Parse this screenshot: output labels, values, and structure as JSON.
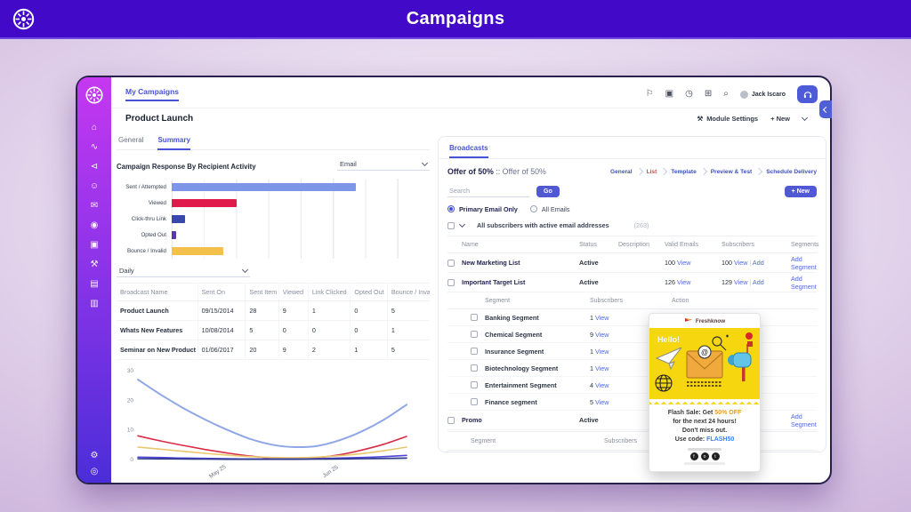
{
  "banner": {
    "title": "Campaigns"
  },
  "header": {
    "tab": "My Campaigns",
    "page_title": "Product Launch",
    "user_name": "Jack Iscaro",
    "module_settings": "Module Settings",
    "new_button": "+ New",
    "icons": {
      "wrench": "⚒"
    },
    "toolbar_icons": [
      {
        "name": "flag",
        "glyph": "⚐"
      },
      {
        "name": "archive",
        "glyph": "▣"
      },
      {
        "name": "history",
        "glyph": "◷"
      },
      {
        "name": "apps",
        "glyph": "⊞"
      },
      {
        "name": "search",
        "glyph": "⌕"
      }
    ]
  },
  "sidebar": {
    "items": [
      {
        "name": "home",
        "glyph": "⌂"
      },
      {
        "name": "activity",
        "glyph": "∿"
      },
      {
        "name": "campaigns",
        "glyph": "⊲"
      },
      {
        "name": "contacts",
        "glyph": "☺"
      },
      {
        "name": "mail",
        "glyph": "✉"
      },
      {
        "name": "insights",
        "glyph": "◉"
      },
      {
        "name": "media",
        "glyph": "▣"
      },
      {
        "name": "tools",
        "glyph": "⚒"
      },
      {
        "name": "reports",
        "glyph": "▤"
      },
      {
        "name": "archive",
        "glyph": "▥"
      }
    ],
    "bottom": [
      {
        "name": "settings",
        "glyph": "⚙"
      },
      {
        "name": "help",
        "glyph": "◎"
      }
    ]
  },
  "left_panel": {
    "tabs": {
      "general": "General",
      "summary": "Summary"
    },
    "chart_heading": "Campaign Response By Recipient Activity",
    "email_filter": "Email",
    "frequency_filter": "Daily",
    "broadcast_table": {
      "headers": [
        "Broadcast Name",
        "Sent On",
        "Sent Item",
        "Viewed",
        "Link Clicked",
        "Opted Out",
        "Bounce / Invalid"
      ],
      "rows": [
        [
          "Product Launch",
          "09/15/2014",
          "28",
          "9",
          "1",
          "0",
          "5"
        ],
        [
          "Whats New Features",
          "10/08/2014",
          "5",
          "0",
          "0",
          "0",
          "1"
        ],
        [
          "Seminar on New Product",
          "01/06/2017",
          "20",
          "9",
          "2",
          "1",
          "5"
        ]
      ]
    }
  },
  "right_panel": {
    "tab": "Broadcasts",
    "title_primary": "Offer of 50%",
    "title_separator": " :: ",
    "title_secondary": "Offer of 50%",
    "steps": [
      {
        "label": "General",
        "active": false
      },
      {
        "label": "List",
        "active": true
      },
      {
        "label": "Template",
        "active": false
      },
      {
        "label": "Preview & Test",
        "active": false
      },
      {
        "label": "Schedule Delivery",
        "active": false
      }
    ],
    "search_placeholder": "Search",
    "go_button": "Go",
    "new_button": "+ New",
    "radios": {
      "primary": "Primary Email Only",
      "all": "All Emails"
    },
    "filter_checkbox": "All subscribers with active email addresses",
    "filter_count": "(263)",
    "lists_table": {
      "headers": [
        "Name",
        "Status",
        "Description",
        "Valid Emails",
        "Subscribers",
        "Segments"
      ],
      "view_label": "View",
      "add_label": "Add",
      "pipe": "|",
      "add_segment_label": "Add Segment",
      "rows": [
        {
          "name": "New Marketing List",
          "status": "Active",
          "valid_emails": "100",
          "subscribers": "100"
        },
        {
          "name": "Important Target List",
          "status": "Active",
          "valid_emails": "126",
          "subscribers": "129"
        }
      ]
    },
    "segments_table": {
      "headers": [
        "Segment",
        "Subscribers",
        "Action"
      ],
      "view_label": "View",
      "rows": [
        {
          "name": "Banking Segment",
          "count": "1"
        },
        {
          "name": "Chemical Segment",
          "count": "9"
        },
        {
          "name": "Insurance Segment",
          "count": "1"
        },
        {
          "name": "Biotechnology Segment",
          "count": "1"
        },
        {
          "name": "Entertainment Segment",
          "count": "4"
        },
        {
          "name": "Finance segment",
          "count": "5"
        }
      ]
    },
    "promo_row": {
      "name": "Promo",
      "status": "Active",
      "segment_link": "Add Segment"
    },
    "empty_segments_headers": [
      "Segment",
      "Subscribers"
    ]
  },
  "promo_card": {
    "brand": "Freshknow",
    "greeting": "Hello!",
    "line1_prefix": "Flash Sale: Get ",
    "line1_highlight": "50% OFF",
    "line2": "for the next 24 hours!",
    "line3": "Don't miss out.",
    "line4_prefix": "Use code: ",
    "code": "FLASH50",
    "social": [
      {
        "name": "facebook",
        "glyph": "f"
      },
      {
        "name": "instagram",
        "glyph": "o"
      },
      {
        "name": "twitter",
        "glyph": "t"
      }
    ]
  },
  "chart_data": [
    {
      "type": "bar",
      "orientation": "horizontal",
      "title": "Campaign Response By Recipient Activity",
      "categories": [
        "Sent / Attempted",
        "Viewed",
        "Click-thru Link",
        "Opted Out",
        "Bounce / Invalid"
      ],
      "values": [
        57,
        20,
        4,
        1.5,
        16
      ],
      "colors": [
        "#7d96e8",
        "#e01b4c",
        "#3949ab",
        "#5e35b1",
        "#f3c14b"
      ],
      "xlim": [
        0,
        80
      ],
      "gridlines": true
    },
    {
      "type": "line",
      "x_tick_labels": [
        {
          "label": "May 25",
          "pos": 0.3
        },
        {
          "label": "Jun 25",
          "pos": 0.72
        }
      ],
      "ylim": [
        0,
        30
      ],
      "yticks": [
        0,
        10,
        20,
        30
      ],
      "series": [
        {
          "name": "Sent / Attempted",
          "color": "#8fa7e6",
          "values": [
            27,
            22,
            17.5,
            13.5,
            10,
            7,
            5,
            4.2,
            4.6,
            6.5,
            9.5,
            13.5,
            18.5
          ]
        },
        {
          "name": "Viewed",
          "color": "#d92b45",
          "values": [
            8,
            6.3,
            4.8,
            3.4,
            2.2,
            1.2,
            0.5,
            0.2,
            0.6,
            1.6,
            3.2,
            5.2,
            7.8
          ]
        },
        {
          "name": "Bounce / Invalid",
          "color": "#e9c76c",
          "values": [
            4.2,
            3.5,
            2.8,
            2.1,
            1.5,
            1,
            0.7,
            0.6,
            0.8,
            1.3,
            2,
            3,
            4.2
          ]
        },
        {
          "name": "Click-thru Link",
          "color": "#5146d9",
          "values": [
            0.8,
            0.7,
            0.5,
            0.4,
            0.3,
            0.2,
            0.2,
            0.2,
            0.3,
            0.5,
            0.7,
            1,
            1.4
          ]
        },
        {
          "name": "Opted Out",
          "color": "#2d3a8c",
          "values": [
            0.3,
            0.25,
            0.2,
            0.15,
            0.1,
            0.1,
            0.1,
            0.1,
            0.15,
            0.2,
            0.3,
            0.4,
            0.5
          ]
        }
      ]
    }
  ]
}
